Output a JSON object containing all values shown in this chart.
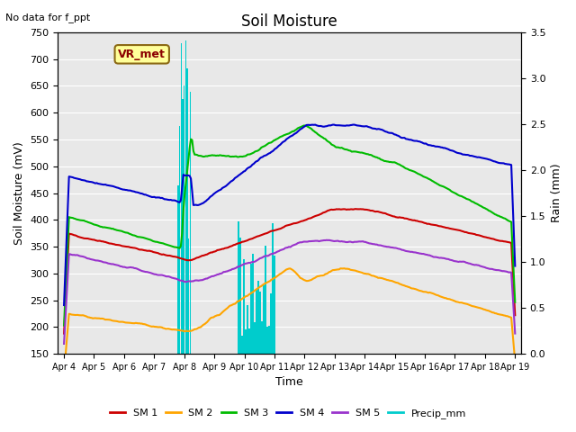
{
  "title": "Soil Moisture",
  "xlabel": "Time",
  "ylabel_left": "Soil Moisture (mV)",
  "ylabel_right": "Rain (mm)",
  "note": "No data for f_ppt",
  "station_label": "VR_met",
  "ylim_left": [
    150,
    750
  ],
  "ylim_right": [
    0.0,
    3.5
  ],
  "yticks_left": [
    150,
    200,
    250,
    300,
    350,
    400,
    450,
    500,
    550,
    600,
    650,
    700,
    750
  ],
  "yticks_right": [
    0.0,
    0.5,
    1.0,
    1.5,
    2.0,
    2.5,
    3.0,
    3.5
  ],
  "x_labels": [
    "Apr 4",
    "Apr 5",
    "Apr 6",
    "Apr 7",
    "Apr 8",
    "Apr 9",
    "Apr 10",
    "Apr 11",
    "Apr 12",
    "Apr 13",
    "Apr 14",
    "Apr 15",
    "Apr 16",
    "Apr 17",
    "Apr 18",
    "Apr 19"
  ],
  "bg_color": "#e8e8e8",
  "fig_color": "#ffffff",
  "colors": {
    "SM1": "#cc0000",
    "SM2": "#ffa500",
    "SM3": "#00bb00",
    "SM4": "#0000cc",
    "SM5": "#9933cc",
    "Precip": "#00cccc"
  },
  "legend_entries": [
    "SM 1",
    "SM 2",
    "SM 3",
    "SM 4",
    "SM 5",
    "Precip_mm"
  ]
}
